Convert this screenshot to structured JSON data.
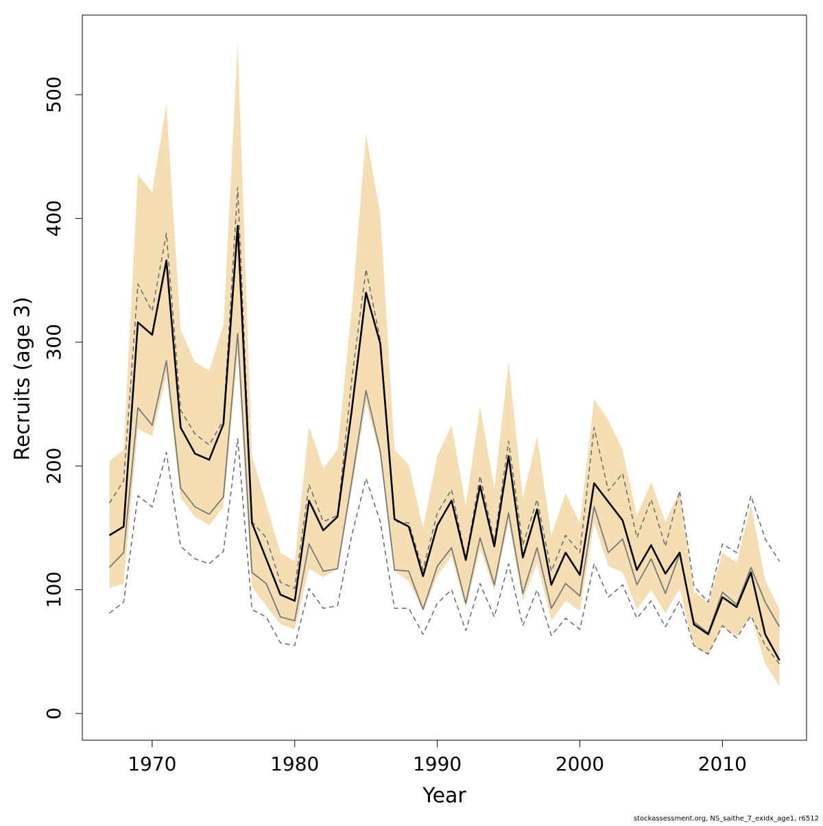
{
  "chart_data": {
    "type": "line",
    "x_label": "Year",
    "y_label": "Recruits (age 3)",
    "footnote": "stockassessment.org, NS_saithe_7_exidx_age1, r6512",
    "x": [
      1967,
      1968,
      1969,
      1970,
      1971,
      1972,
      1973,
      1974,
      1975,
      1976,
      1977,
      1978,
      1979,
      1980,
      1981,
      1982,
      1983,
      1984,
      1985,
      1986,
      1987,
      1988,
      1989,
      1990,
      1991,
      1992,
      1993,
      1994,
      1995,
      1996,
      1997,
      1998,
      1999,
      2000,
      2001,
      2002,
      2003,
      2004,
      2005,
      2006,
      2007,
      2008,
      2009,
      2010,
      2011,
      2012,
      2013,
      2014
    ],
    "xlim": [
      1965.1,
      2015.9
    ],
    "xticks": [
      1970,
      1980,
      1990,
      2000,
      2010
    ],
    "ylim": [
      -21.6,
      564.3
    ],
    "yticks": [
      0,
      100,
      200,
      300,
      400,
      500
    ],
    "band": {
      "color": "#f5deb3",
      "upper": [
        204,
        213,
        436,
        421,
        493,
        310,
        284,
        277,
        314,
        542,
        208,
        169,
        130,
        123,
        232,
        198,
        213,
        327,
        468,
        404,
        213,
        201,
        150,
        208,
        233,
        168,
        248,
        182,
        284,
        174,
        224,
        144,
        178,
        154,
        254,
        237,
        213,
        160,
        187,
        155,
        179,
        99,
        89,
        130,
        122,
        169,
        108,
        84
      ],
      "lower": [
        101,
        105,
        230,
        224,
        273,
        174,
        159,
        152,
        167,
        290,
        102,
        87,
        72,
        68,
        117,
        110,
        117,
        181,
        251,
        208,
        115,
        107,
        83,
        111,
        127,
        85,
        133,
        99,
        155,
        91,
        122,
        75,
        91,
        83,
        154,
        119,
        114,
        84,
        100,
        81,
        101,
        54,
        47,
        70,
        62,
        79,
        40,
        22
      ]
    },
    "series": [
      {
        "color": "#777777",
        "style": "solid",
        "width": 1.8,
        "values": [
          118,
          130,
          247,
          233,
          285,
          182,
          167,
          161,
          175,
          307,
          114,
          105,
          78,
          75,
          137,
          115,
          117,
          188,
          261,
          212,
          116,
          115,
          84,
          119,
          134,
          89,
          142,
          104,
          162,
          97,
          134,
          85,
          105,
          95,
          167,
          130,
          141,
          104,
          125,
          97,
          129,
          74,
          65,
          98,
          88,
          118,
          90,
          70
        ]
      },
      {
        "color": "#666666",
        "style": "dashed",
        "width": 1.5,
        "values": [
          170,
          188,
          347,
          325,
          388,
          245,
          226,
          217,
          237,
          425,
          155,
          142,
          106,
          101,
          185,
          155,
          160,
          270,
          359,
          302,
          155,
          154,
          116,
          162,
          181,
          125,
          192,
          139,
          220,
          136,
          173,
          115,
          144,
          130,
          231,
          180,
          194,
          142,
          173,
          135,
          180,
          103,
          90,
          137,
          130,
          176,
          141,
          123
        ]
      },
      {
        "color": "#666666",
        "style": "dashed",
        "width": 1.5,
        "values": [
          81,
          90,
          176,
          167,
          211,
          135,
          125,
          121,
          131,
          222,
          84,
          78,
          57,
          55,
          101,
          85,
          87,
          144,
          190,
          155,
          85,
          85,
          64,
          89,
          100,
          67,
          105,
          78,
          121,
          71,
          100,
          63,
          77,
          68,
          121,
          94,
          104,
          77,
          91,
          70,
          91,
          55,
          48,
          71,
          61,
          79,
          55,
          40
        ]
      },
      {
        "color": "#000000",
        "style": "solid",
        "width": 2.6,
        "values": [
          144,
          151,
          316,
          306,
          366,
          231,
          210,
          205,
          234,
          394,
          154,
          125,
          96,
          91,
          172,
          148,
          159,
          245,
          340,
          299,
          157,
          151,
          111,
          152,
          172,
          124,
          184,
          135,
          208,
          126,
          165,
          104,
          130,
          112,
          186,
          171,
          156,
          116,
          136,
          113,
          130,
          72,
          64,
          94,
          86,
          114,
          64,
          43
        ]
      }
    ]
  }
}
